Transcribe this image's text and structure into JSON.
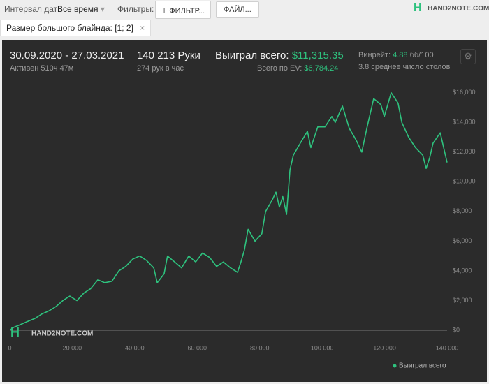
{
  "toolbar": {
    "date_label": "Интервал дат:",
    "date_value": "Все время",
    "filters_label": "Фильтры:",
    "filter_button": "ФИЛЬТР...",
    "file_button": "ФАЙЛ...",
    "logo": "HAND2NOTE.COM"
  },
  "chip": "Размер большого блайнда: [1; 2]",
  "stats": {
    "period": "30.09.2020 - 27.03.2021",
    "active": "Активен 510ч 47м",
    "hands": "140 213 Руки",
    "hands_per_hour": "274 рук в час",
    "won_label": "Выиграл всего:",
    "won_value": "$11,315.35",
    "ev_label": "Всего по EV:",
    "ev_value": "$6,784.24",
    "winrate_label": "Винрейт:",
    "winrate_value": "4.88",
    "winrate_unit": "бб/100",
    "tables": "3.8 среднее число столов"
  },
  "chart_data": {
    "type": "line",
    "watermark": "HAND2NOTE.COM",
    "x": [
      0,
      1300,
      3600,
      5800,
      8100,
      10300,
      12500,
      14800,
      17000,
      19200,
      21500,
      23700,
      25900,
      28200,
      30400,
      32700,
      34900,
      37100,
      39400,
      41600,
      43800,
      46100,
      47200,
      49400,
      50500,
      52800,
      55000,
      57300,
      59500,
      61700,
      64000,
      66200,
      68400,
      70700,
      72900,
      74000,
      75100,
      76300,
      78500,
      80700,
      81900,
      84100,
      85200,
      86300,
      87400,
      88600,
      89700,
      90800,
      93000,
      95300,
      96400,
      98600,
      100900,
      103100,
      104200,
      106500,
      108700,
      110900,
      112700,
      114300,
      116500,
      118800,
      119900,
      122100,
      124300,
      125500,
      127700,
      129900,
      132200,
      133300,
      134400,
      135500,
      137800,
      138900,
      140000
    ],
    "series": [
      {
        "name": "Выиграл всего",
        "color": "#2ec27e",
        "values": [
          0,
          200,
          400,
          600,
          800,
          1100,
          1300,
          1600,
          2000,
          2300,
          2000,
          2500,
          2800,
          3400,
          3200,
          3300,
          4000,
          4300,
          4800,
          5000,
          4700,
          4200,
          3200,
          3800,
          5000,
          4600,
          4200,
          5000,
          4600,
          5200,
          4900,
          4300,
          4600,
          4200,
          3900,
          4600,
          5400,
          6800,
          6000,
          6500,
          8000,
          8800,
          9300,
          8300,
          9000,
          7800,
          10800,
          11800,
          12600,
          13400,
          12300,
          13700,
          13700,
          14400,
          14000,
          15100,
          13600,
          12800,
          12000,
          13600,
          15600,
          15200,
          14400,
          16000,
          15300,
          14000,
          13000,
          12300,
          11800,
          10900,
          11600,
          12600,
          13300,
          12300,
          11300
        ]
      }
    ],
    "xlim": [
      0,
      140000
    ],
    "ylim": [
      -800,
      16600
    ],
    "xticks": [
      0,
      {
        "value": 20000,
        "label": "20 000"
      },
      {
        "value": 40000,
        "label": "40 000"
      },
      {
        "value": 60000,
        "label": "60 000"
      },
      {
        "value": 80000,
        "label": "80 000"
      },
      {
        "value": 100000,
        "label": "100 000"
      },
      {
        "value": 120000,
        "label": "120 000"
      },
      {
        "value": 140000,
        "label": "140 000"
      }
    ],
    "yticks": [
      {
        "value": 0,
        "label": "$0"
      },
      {
        "value": 2000,
        "label": "$2,000"
      },
      {
        "value": 4000,
        "label": "$4,000"
      },
      {
        "value": 6000,
        "label": "$6,000"
      },
      {
        "value": 8000,
        "label": "$8,000"
      },
      {
        "value": 10000,
        "label": "$10,000"
      },
      {
        "value": 12000,
        "label": "$12,000"
      },
      {
        "value": 14000,
        "label": "$14,000"
      },
      {
        "value": 16000,
        "label": "$16,000"
      }
    ],
    "zero_line": true,
    "legend": "bottom-right"
  }
}
